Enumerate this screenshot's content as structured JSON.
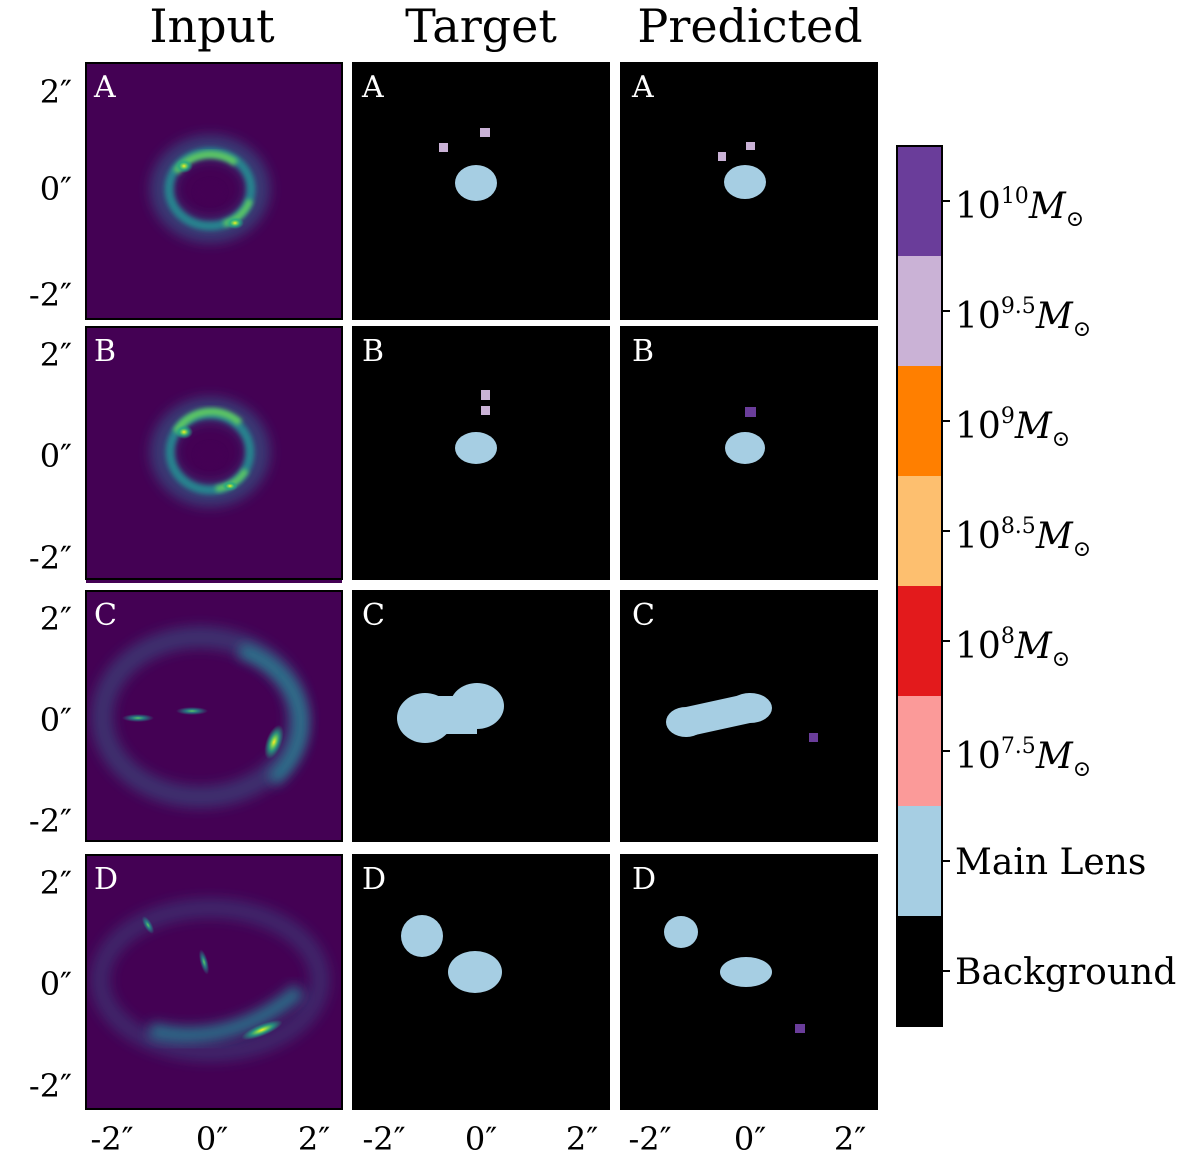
{
  "columns": [
    "Input",
    "Target",
    "Predicted"
  ],
  "rows": [
    "A",
    "B",
    "C",
    "D"
  ],
  "axis": {
    "y_ticks": [
      "2″",
      "0″",
      "-2″"
    ],
    "x_ticks": [
      "-2″",
      "0″",
      "2″"
    ],
    "y_tick_values": [
      2,
      0,
      -2
    ],
    "x_tick_values": [
      -2,
      0,
      2
    ],
    "range": [
      -2.5,
      2.5
    ]
  },
  "colorbar": {
    "classes": [
      {
        "base": "10",
        "exp": "10",
        "unit": "M",
        "color": "#6a3d9a"
      },
      {
        "base": "10",
        "exp": "9.5",
        "unit": "M",
        "color": "#cab2d6"
      },
      {
        "base": "10",
        "exp": "9",
        "unit": "M",
        "color": "#ff7f00"
      },
      {
        "base": "10",
        "exp": "8.5",
        "unit": "M",
        "color": "#fdbf6f"
      },
      {
        "base": "10",
        "exp": "8",
        "unit": "M",
        "color": "#e31a1c"
      },
      {
        "base": "10",
        "exp": "7.5",
        "unit": "M",
        "color": "#fb9a99"
      },
      {
        "label": "Main Lens",
        "color": "#a6cee3"
      },
      {
        "label": "Background",
        "color": "#000000"
      }
    ]
  },
  "colors": {
    "input_bg": "#440154",
    "panel_bg": "#000000",
    "main_lens": "#a6cee3"
  }
}
